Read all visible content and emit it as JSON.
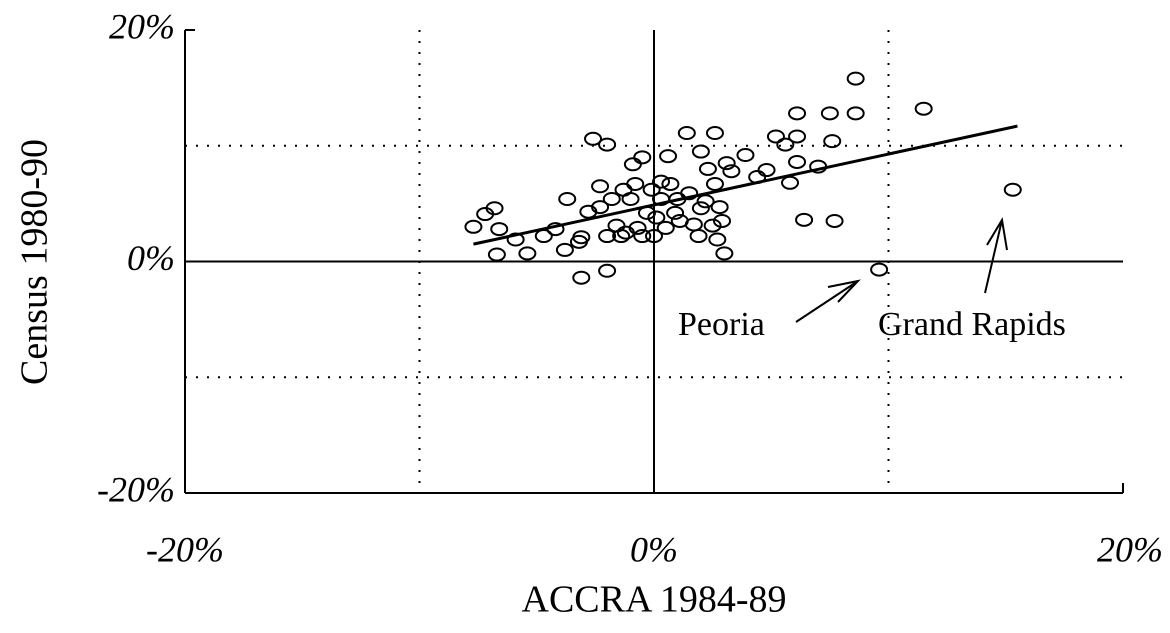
{
  "chart_data": {
    "type": "scatter",
    "x_label": "ACCRA 1984-89",
    "y_label": "Census 1980-90",
    "xlim": [
      -20,
      20
    ],
    "ylim": [
      -20,
      20
    ],
    "xticks": [
      {
        "value": -20,
        "label": "-20%"
      },
      {
        "value": 0,
        "label": "0%"
      },
      {
        "value": 20,
        "label": "20%"
      }
    ],
    "yticks": [
      {
        "value": -20,
        "label": "-20%"
      },
      {
        "value": 0,
        "label": "0%"
      },
      {
        "value": 20,
        "label": "20%"
      }
    ],
    "xgrid": [
      -10,
      10
    ],
    "ygrid": [
      -10,
      10
    ],
    "color": "#000000",
    "x": [
      -7.7,
      -7.2,
      -6.8,
      -6.6,
      -6.7,
      -5.9,
      -5.4,
      -4.7,
      -4.2,
      -3.7,
      -3.8,
      -3.2,
      -3.1,
      -3.1,
      -2.8,
      -2.6,
      -2.3,
      -2.3,
      -2.0,
      -2.0,
      -2.0,
      -1.8,
      -1.6,
      -1.4,
      -1.3,
      -1.2,
      -1.0,
      -0.9,
      -0.8,
      -0.7,
      -0.5,
      -0.5,
      -0.3,
      -0.1,
      0.0,
      0.1,
      0.3,
      0.3,
      0.5,
      0.6,
      0.7,
      0.9,
      1.0,
      1.1,
      1.4,
      1.5,
      1.7,
      1.9,
      2.0,
      2.0,
      2.2,
      2.3,
      2.5,
      2.6,
      2.6,
      2.7,
      2.8,
      2.9,
      3.0,
      3.1,
      3.3,
      3.9,
      4.4,
      4.8,
      5.2,
      5.6,
      5.8,
      6.1,
      6.1,
      6.1,
      6.4,
      7.0,
      7.5,
      7.6,
      7.7,
      8.6,
      8.6,
      9.6,
      11.5,
      15.3
    ],
    "y": [
      3.0,
      4.1,
      4.6,
      2.8,
      0.6,
      1.9,
      0.7,
      2.2,
      2.8,
      5.4,
      1.0,
      1.7,
      2.1,
      -1.4,
      4.3,
      10.6,
      4.7,
      6.5,
      10.1,
      -0.8,
      2.2,
      5.4,
      3.1,
      2.2,
      6.2,
      2.5,
      5.4,
      8.4,
      6.7,
      2.9,
      9.0,
      2.2,
      4.2,
      6.2,
      2.2,
      3.8,
      6.9,
      5.4,
      2.9,
      9.1,
      6.7,
      4.2,
      5.4,
      3.5,
      11.1,
      5.9,
      3.2,
      2.2,
      4.6,
      9.5,
      5.2,
      8.0,
      3.1,
      11.1,
      6.7,
      1.9,
      4.7,
      3.5,
      0.7,
      8.5,
      7.8,
      9.2,
      7.3,
      7.9,
      10.8,
      10.1,
      6.8,
      12.8,
      8.6,
      10.8,
      3.6,
      8.2,
      12.8,
      10.4,
      3.5,
      15.8,
      12.8,
      -0.7,
      13.2,
      6.2
    ],
    "trendline": {
      "x": [
        -7.7,
        15.5
      ],
      "y": [
        1.5,
        11.7
      ]
    },
    "annotations": [
      "Peoria",
      "Grand Rapids"
    ]
  }
}
